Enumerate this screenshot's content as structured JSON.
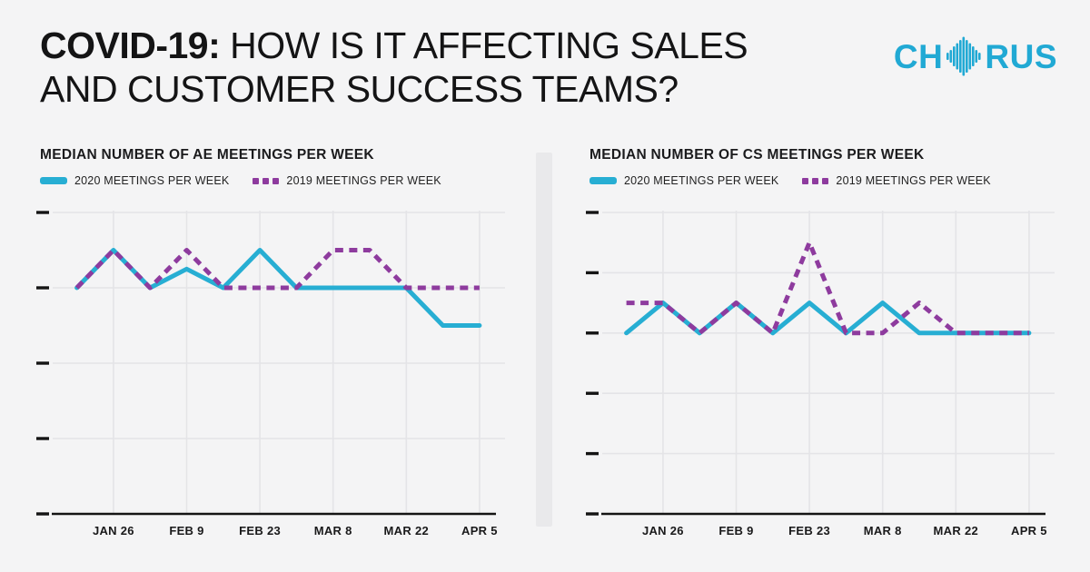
{
  "page": {
    "background": "#f4f4f5"
  },
  "header": {
    "title_emphasis": "COVID-19:",
    "title_line1_rest": " HOW IS IT AFFECTING SALES",
    "title_line2": "AND CUSTOMER SUCCESS TEAMS?",
    "logo": {
      "prefix": "CH",
      "suffix": "RUS",
      "icon": "soundwave-icon",
      "color": "#21a9d4"
    }
  },
  "colors": {
    "background": "#f4f4f5",
    "text": "#141415",
    "accent_cyan": "#27aed3",
    "accent_purple": "#8e3b9e",
    "grid": "#e4e4e7",
    "axis": "#141414",
    "divider": "#e9e9eb"
  },
  "chart_data": [
    {
      "type": "line",
      "title": "MEDIAN NUMBER OF AE MEETINGS PER WEEK",
      "legend_position": "top-left",
      "grid": true,
      "legend": [
        {
          "label": "2020 MEETINGS PER WEEK",
          "color": "#27aed3",
          "style": "solid"
        },
        {
          "label": "2019 MEETINGS PER WEEK",
          "color": "#8e3b9e",
          "style": "dashed"
        }
      ],
      "x_tick_labels": [
        "JAN 26",
        "FEB 9",
        "FEB 23",
        "MAR 8",
        "MAR 22",
        "APR 5"
      ],
      "x_tick_week_indices": [
        1,
        3,
        5,
        7,
        9,
        11
      ],
      "weeks_total": 12,
      "y_axis": {
        "tick_count": 5,
        "baseline_tick_index_from_top": 1,
        "numeric_labels_visible": false,
        "note": "y values unlabeled in source; values expressed in gridline units relative to the baseline gridline where most points sit"
      },
      "series": [
        {
          "name": "2020 MEETINGS PER WEEK",
          "style": "solid",
          "color": "#27aed3",
          "values_grid_units_rel_baseline": [
            0,
            0.5,
            0,
            0.25,
            0,
            0.5,
            0,
            0,
            0,
            0,
            -0.5,
            -0.5
          ]
        },
        {
          "name": "2019 MEETINGS PER WEEK",
          "style": "dashed",
          "color": "#8e3b9e",
          "values_grid_units_rel_baseline": [
            0,
            0.5,
            0,
            0.5,
            0,
            0,
            0,
            0.5,
            0.5,
            0,
            0,
            0
          ]
        }
      ]
    },
    {
      "type": "line",
      "title": "MEDIAN NUMBER OF CS MEETINGS PER WEEK",
      "legend_position": "top-left",
      "grid": true,
      "legend": [
        {
          "label": "2020 MEETINGS PER WEEK",
          "color": "#27aed3",
          "style": "solid"
        },
        {
          "label": "2019 MEETINGS PER WEEK",
          "color": "#8e3b9e",
          "style": "dashed"
        }
      ],
      "x_tick_labels": [
        "JAN 26",
        "FEB 9",
        "FEB 23",
        "MAR 8",
        "MAR 22",
        "APR 5"
      ],
      "x_tick_week_indices": [
        1,
        3,
        5,
        7,
        9,
        11
      ],
      "weeks_total": 12,
      "y_axis": {
        "tick_count": 6,
        "baseline_tick_index_from_top": 2,
        "numeric_labels_visible": false,
        "note": "y values unlabeled in source; values expressed in gridline units relative to the baseline gridline where most points sit"
      },
      "series": [
        {
          "name": "2020 MEETINGS PER WEEK",
          "style": "solid",
          "color": "#27aed3",
          "values_grid_units_rel_baseline": [
            0,
            0.5,
            0,
            0.5,
            0,
            0.5,
            0,
            0.5,
            0,
            0,
            0,
            0
          ]
        },
        {
          "name": "2019 MEETINGS PER WEEK",
          "style": "dashed",
          "color": "#8e3b9e",
          "values_grid_units_rel_baseline": [
            0.5,
            0.5,
            0,
            0.5,
            0,
            1.5,
            0,
            0,
            0.5,
            0,
            0,
            0
          ]
        }
      ]
    }
  ]
}
